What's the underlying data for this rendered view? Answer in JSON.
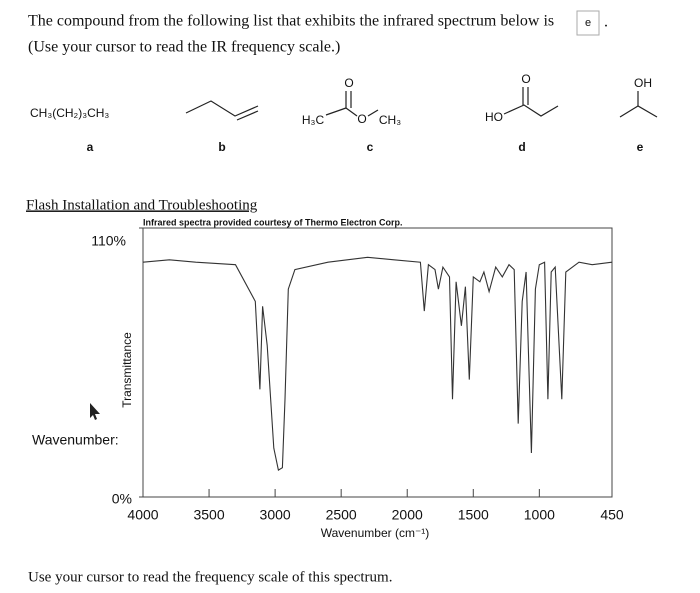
{
  "question": {
    "text": "The compound from the following list that exhibits the infrared spectrum below is",
    "answer": "e",
    "end": ".",
    "instruction": "(Use your cursor to read the IR frequency scale.)"
  },
  "molecules": [
    {
      "formula": "CH₃(CH₂)₃CH₃",
      "label": "a"
    },
    {
      "label": "b"
    },
    {
      "atoms": [
        "O",
        "H₃C",
        "O",
        "CH₃"
      ],
      "label": "c"
    },
    {
      "atoms": [
        "O",
        "HO"
      ],
      "label": "d"
    },
    {
      "atoms": [
        "OH"
      ],
      "label": "e"
    }
  ],
  "link": "Flash Installation and Troubleshooting",
  "footer": "Use your cursor to read the frequency scale of this spectrum.",
  "chart_data": {
    "type": "line",
    "credit": "Infrared spectra provided courtesy of Thermo Electron Corp.",
    "y_label": "Transmittance",
    "x_label": "Wavenumber (cm⁻¹)",
    "cursor_label": "Wavenumber:",
    "xlim": [
      4000,
      450
    ],
    "xticks": [
      4000,
      3500,
      3000,
      2500,
      2000,
      1500,
      1000,
      450
    ],
    "ylim": [
      0,
      110
    ],
    "yticks": [
      {
        "value": 0,
        "label": "0%"
      },
      {
        "value": 110,
        "label": "110%"
      }
    ],
    "color": "#333333",
    "x": [
      4000,
      3800,
      3600,
      3300,
      3150,
      3115,
      3095,
      3060,
      3010,
      2975,
      2945,
      2925,
      2900,
      2850,
      2600,
      2300,
      2100,
      1900,
      1871,
      1840,
      1790,
      1764,
      1730,
      1680,
      1657,
      1630,
      1590,
      1560,
      1530,
      1500,
      1450,
      1420,
      1380,
      1330,
      1280,
      1230,
      1190,
      1160,
      1130,
      1100,
      1060,
      1030,
      1000,
      960,
      935,
      910,
      880,
      830,
      800,
      700,
      600,
      450
    ],
    "values": [
      96,
      97,
      96,
      95,
      80,
      44,
      78,
      62,
      20,
      11,
      12,
      40,
      85,
      93,
      96,
      98,
      97,
      96,
      76,
      95,
      93,
      85,
      94,
      90,
      40,
      88,
      70,
      86,
      48,
      90,
      88,
      92,
      84,
      94,
      90,
      95,
      93,
      30,
      80,
      92,
      18,
      85,
      95,
      96,
      40,
      92,
      94,
      40,
      92,
      96,
      95,
      96
    ]
  }
}
